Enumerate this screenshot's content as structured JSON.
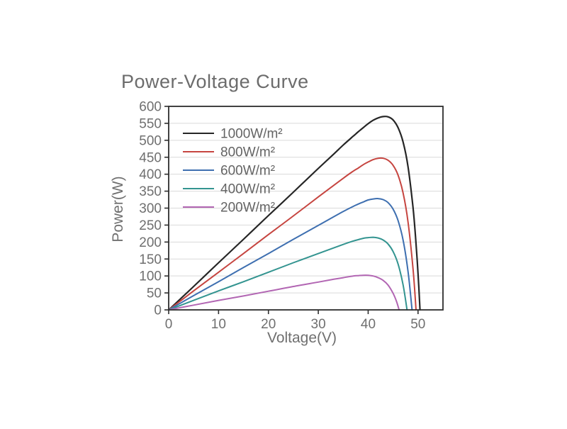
{
  "title": "Power-Voltage Curve",
  "colors": {
    "title_text": "#6c6c6c",
    "tick_text": "#6f6f6f",
    "legend_text": "#646464",
    "axis": "#2e2e2e",
    "grid": "#d9d9d9",
    "background": "#ffffff"
  },
  "chart_data": {
    "type": "line",
    "title": "Power-Voltage Curve",
    "xlabel": "Voltage(V)",
    "ylabel": "Power(W)",
    "xlim": [
      0,
      55
    ],
    "ylim": [
      0,
      600
    ],
    "x_ticks": [
      0,
      10,
      20,
      30,
      40,
      50
    ],
    "y_ticks": [
      0,
      50,
      100,
      150,
      200,
      250,
      300,
      350,
      400,
      450,
      500,
      550,
      600
    ],
    "grid": "horizontal-only",
    "legend_position": "top-left-inside",
    "series": [
      {
        "name": "1000W/m²",
        "color": "#262626",
        "peak_power_w": 570,
        "peak_voltage_v": 43,
        "open_circuit_voltage_v": 50.4,
        "points": [
          [
            0,
            0
          ],
          [
            5,
            69
          ],
          [
            10,
            139
          ],
          [
            15,
            208
          ],
          [
            20,
            278
          ],
          [
            25,
            347
          ],
          [
            30,
            417
          ],
          [
            33,
            458
          ],
          [
            35,
            486
          ],
          [
            37,
            512
          ],
          [
            38,
            525
          ],
          [
            39,
            537
          ],
          [
            40,
            549
          ],
          [
            41,
            559
          ],
          [
            42,
            566
          ],
          [
            43,
            570
          ],
          [
            44,
            569
          ],
          [
            45,
            560
          ],
          [
            46,
            537
          ],
          [
            47,
            495
          ],
          [
            48,
            422
          ],
          [
            49,
            301
          ],
          [
            49.5,
            215
          ],
          [
            50,
            107
          ],
          [
            50.4,
            0
          ]
        ]
      },
      {
        "name": "800W/m²",
        "color": "#c64540",
        "peak_power_w": 447,
        "peak_voltage_v": 42.5,
        "open_circuit_voltage_v": 49.6,
        "points": [
          [
            0,
            0
          ],
          [
            5,
            56
          ],
          [
            10,
            111
          ],
          [
            15,
            166
          ],
          [
            20,
            222
          ],
          [
            25,
            277
          ],
          [
            30,
            333
          ],
          [
            35,
            388
          ],
          [
            37,
            409
          ],
          [
            38,
            418
          ],
          [
            39,
            428
          ],
          [
            40,
            436
          ],
          [
            41,
            443
          ],
          [
            42,
            447
          ],
          [
            43,
            447
          ],
          [
            44,
            441
          ],
          [
            45,
            426
          ],
          [
            46,
            397
          ],
          [
            47,
            345
          ],
          [
            48,
            259
          ],
          [
            49,
            120
          ],
          [
            49.6,
            0
          ]
        ]
      },
      {
        "name": "600W/m²",
        "color": "#3e6fb0",
        "peak_power_w": 328,
        "peak_voltage_v": 42,
        "open_circuit_voltage_v": 48.8,
        "points": [
          [
            0,
            0
          ],
          [
            5,
            42
          ],
          [
            10,
            83
          ],
          [
            15,
            125
          ],
          [
            20,
            166
          ],
          [
            25,
            208
          ],
          [
            30,
            249
          ],
          [
            35,
            290
          ],
          [
            37,
            305
          ],
          [
            38,
            312
          ],
          [
            39,
            318
          ],
          [
            40,
            324
          ],
          [
            41,
            327
          ],
          [
            42,
            328
          ],
          [
            43,
            325
          ],
          [
            44,
            316
          ],
          [
            45,
            297
          ],
          [
            46,
            263
          ],
          [
            47,
            206
          ],
          [
            48,
            113
          ],
          [
            48.8,
            0
          ]
        ]
      },
      {
        "name": "400W/m²",
        "color": "#339490",
        "peak_power_w": 214,
        "peak_voltage_v": 40.5,
        "open_circuit_voltage_v": 47.8,
        "points": [
          [
            0,
            0
          ],
          [
            5,
            28
          ],
          [
            10,
            56
          ],
          [
            15,
            83
          ],
          [
            20,
            111
          ],
          [
            25,
            139
          ],
          [
            30,
            166
          ],
          [
            35,
            193
          ],
          [
            37,
            203
          ],
          [
            38,
            207
          ],
          [
            39,
            211
          ],
          [
            40,
            213
          ],
          [
            41,
            214
          ],
          [
            42,
            212
          ],
          [
            43,
            206
          ],
          [
            44,
            194
          ],
          [
            45,
            172
          ],
          [
            46,
            135
          ],
          [
            47,
            74
          ],
          [
            47.8,
            0
          ]
        ]
      },
      {
        "name": "200W/m²",
        "color": "#b266b3",
        "peak_power_w": 102,
        "peak_voltage_v": 39.5,
        "open_circuit_voltage_v": 46.2,
        "points": [
          [
            0,
            0
          ],
          [
            5,
            14
          ],
          [
            10,
            28
          ],
          [
            15,
            41
          ],
          [
            20,
            55
          ],
          [
            25,
            69
          ],
          [
            30,
            82
          ],
          [
            33,
            90
          ],
          [
            35,
            95
          ],
          [
            37,
            100
          ],
          [
            38,
            101
          ],
          [
            39,
            102
          ],
          [
            40,
            102
          ],
          [
            41,
            100
          ],
          [
            42,
            95
          ],
          [
            43,
            87
          ],
          [
            44,
            73
          ],
          [
            45,
            49
          ],
          [
            45.7,
            24
          ],
          [
            46.2,
            0
          ]
        ]
      }
    ]
  }
}
